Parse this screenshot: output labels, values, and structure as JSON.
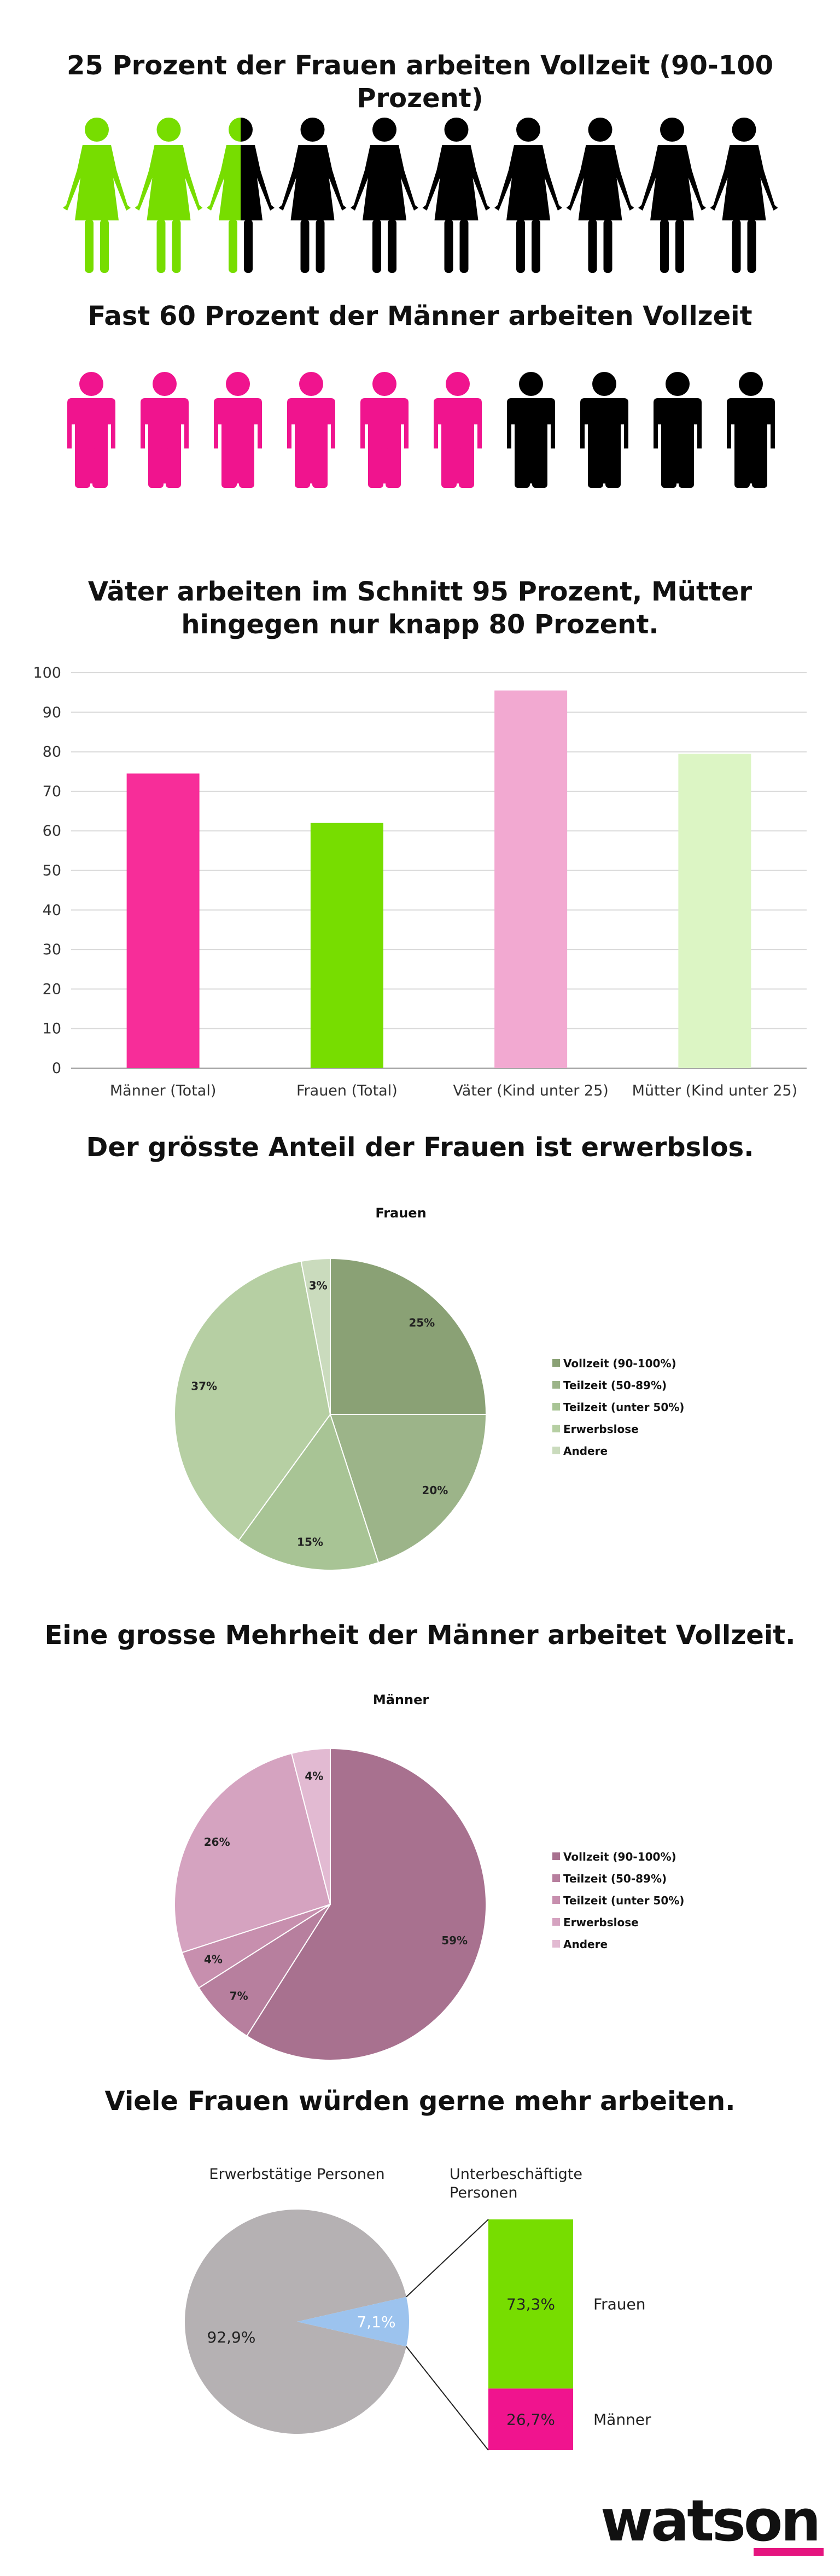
{
  "colors": {
    "green": "#77dd00",
    "pink": "#f0148e",
    "black": "#000000",
    "light_pink": "#f2a9d1",
    "light_green": "#dcf5c4",
    "grey": "#b5b1b3",
    "blue": "#9cc3ee",
    "watson_pink": "#e5147f"
  },
  "section_women_icons": {
    "headline": "25 Prozent der Frauen arbeiten Vollzeit (90-100 Prozent)",
    "icon": "woman-icon",
    "total": 10,
    "highlighted": 2.5
  },
  "section_men_icons": {
    "headline": "Fast 60 Prozent der Männer arbeiten Vollzeit",
    "icon": "man-icon",
    "total": 10,
    "highlighted": 6
  },
  "section_bar": {
    "headline": "Väter arbeiten im Schnitt 95 Prozent, Mütter hingegen nur knapp 80 Prozent."
  },
  "section_women_pie": {
    "headline": "Der grösste Anteil der Frauen ist erwerbslos."
  },
  "section_men_pie": {
    "headline": "Eine grosse Mehrheit der Männer arbeitet Vollzeit."
  },
  "section_underemployment": {
    "headline": "Viele Frauen würden gerne mehr arbeiten."
  },
  "brand": {
    "logo": "watson"
  },
  "chart_data": [
    {
      "type": "bar",
      "title": "Väter arbeiten im Schnitt 95 Prozent, Mütter hingegen nur knapp 80 Prozent.",
      "categories": [
        "Männer (Total)",
        "Frauen (Total)",
        "Väter (Kind unter 25)",
        "Mütter (Kind unter 25)"
      ],
      "values": [
        74.5,
        62,
        95.5,
        79.5
      ],
      "bar_colors": [
        "#f72d99",
        "#77dd00",
        "#f2a9d1",
        "#dcf5c4"
      ],
      "ylim": [
        0,
        100
      ],
      "yticks": [
        "0",
        "10",
        "20",
        "30",
        "40",
        "50",
        "60",
        "70",
        "80",
        "90",
        "100"
      ],
      "xlabel": "",
      "ylabel": "",
      "grid": true
    },
    {
      "type": "pie",
      "title": "Frauen",
      "labels": [
        "Vollzeit (90-100%)",
        "Teilzeit (50-89%)",
        "Teilzeit (unter 50%)",
        "Erwerbslose",
        "Andere"
      ],
      "values": [
        25,
        20,
        15,
        37,
        3
      ],
      "value_labels": [
        "25%",
        "20%",
        "15%",
        "37%",
        "3%"
      ],
      "colors": [
        "#8aa175",
        "#9cb489",
        "#a8c495",
        "#b6cfa3",
        "#cadbbd"
      ],
      "legend": "right"
    },
    {
      "type": "pie",
      "title": "Männer",
      "labels": [
        "Vollzeit (90-100%)",
        "Teilzeit (50-89%)",
        "Teilzeit (unter 50%)",
        "Erwerbslose",
        "Andere"
      ],
      "values": [
        59,
        7,
        4,
        26,
        4
      ],
      "value_labels": [
        "59%",
        "7%",
        "4%",
        "26%",
        "4%"
      ],
      "colors": [
        "#a8718f",
        "#b77f9e",
        "#c78fae",
        "#d5a3c0",
        "#e2bad2"
      ],
      "legend": "right"
    },
    {
      "type": "pie",
      "title": "Erwerbstätige Personen",
      "labels": [
        "",
        "Unterbeschäftigte"
      ],
      "values": [
        92.9,
        7.1
      ],
      "value_labels": [
        "92,9%",
        "7,1%"
      ],
      "colors": [
        "#b5b1b3",
        "#9cc3ee"
      ]
    },
    {
      "type": "bar",
      "stacked": true,
      "title": "Unterbeschäftigte Personen",
      "categories": [
        "Frauen",
        "Männer"
      ],
      "values": [
        73.3,
        26.7
      ],
      "value_labels": [
        "73,3%",
        "26,7%"
      ],
      "colors": [
        "#77dd00",
        "#f0148e"
      ]
    }
  ]
}
